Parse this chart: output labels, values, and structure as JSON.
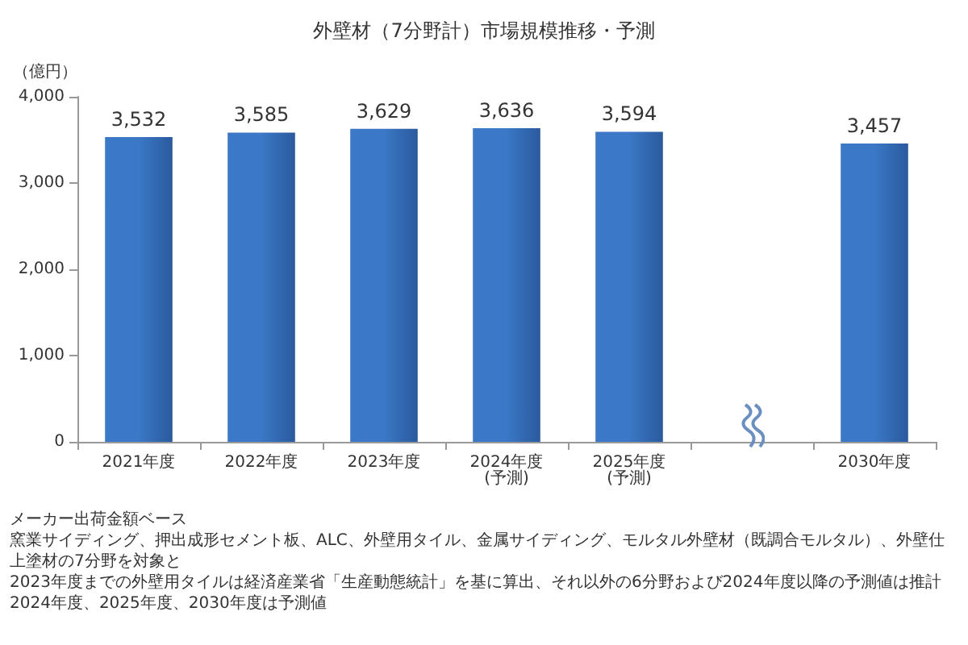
{
  "chart_data": {
    "type": "bar",
    "title": "外壁材（7分野計）市場規模推移・予測",
    "ylabel": "（億円）",
    "categories": [
      "2021年度",
      "2022年度",
      "2023年度",
      "2024年度\n(予測)",
      "2025年度\n(予測)",
      null,
      "2030年度"
    ],
    "values": [
      3532,
      3585,
      3629,
      3636,
      3594,
      null,
      3457
    ],
    "value_labels": [
      "3,532",
      "3,585",
      "3,629",
      "3,636",
      "3,594",
      null,
      "3,457"
    ],
    "color": "#3b78c6",
    "ylim": [
      0,
      4000
    ],
    "yticks": [
      {
        "value": 0,
        "label": "0"
      },
      {
        "value": 1000,
        "label": "1,000"
      },
      {
        "value": 2000,
        "label": "2,000"
      },
      {
        "value": 3000,
        "label": "3,000"
      },
      {
        "value": 4000,
        "label": "4,000"
      }
    ],
    "grid": false,
    "annotations": [
      "メーカー出荷金額ベース",
      "窯業サイディング、押出成形セメント板、ALC、外壁用タイル、金属サイディング、モルタル外壁材（既調合モルタル）、外壁仕上塗材の7分野を対象と",
      "2023年度までの外壁用タイルは経済産業省「生産動態統計」を基に算出、それ以外の6分野および2024年度以降の予測値は推計",
      "2024年度、2025年度、2030年度は予測値"
    ]
  }
}
